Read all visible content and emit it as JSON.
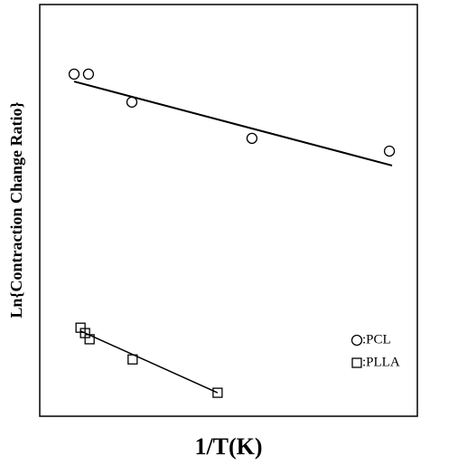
{
  "chart_data": {
    "type": "scatter",
    "xlabel": "1/T(K)",
    "ylabel": "Ln{Contraction Change Ratio}",
    "xlim": [
      0,
      100
    ],
    "ylim": [
      0,
      100
    ],
    "series": [
      {
        "name": ":PCL",
        "marker": "circle",
        "color": "#000000",
        "x": [
          9.1,
          12.9,
          24.4,
          56.2,
          92.6
        ],
        "values": [
          83.1,
          83.1,
          76.3,
          67.5,
          64.4
        ],
        "fit_x": [
          9.1,
          93.3
        ],
        "fit_values": [
          81.3,
          60.9
        ]
      },
      {
        "name": ":PLLA",
        "marker": "square",
        "color": "#000000",
        "x": [
          10.8,
          12.0,
          13.2,
          24.6,
          47.1
        ],
        "values": [
          21.5,
          20.2,
          18.7,
          13.8,
          5.7
        ],
        "fit_x": [
          10.8,
          47.1
        ],
        "fit_values": [
          20.7,
          5.7
        ]
      }
    ]
  }
}
